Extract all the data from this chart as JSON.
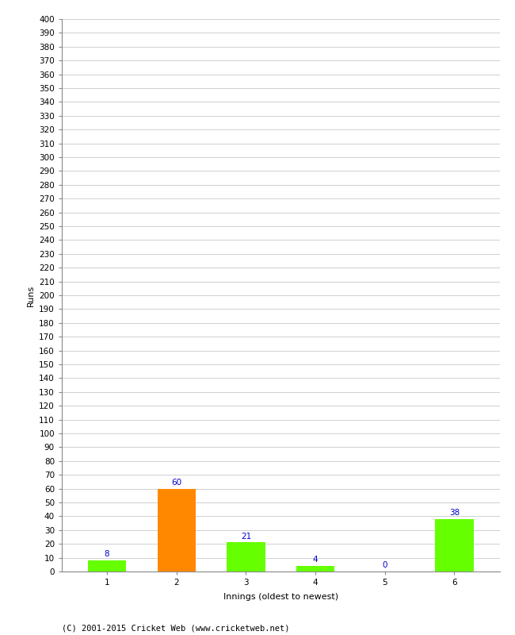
{
  "categories": [
    "1",
    "2",
    "3",
    "4",
    "5",
    "6"
  ],
  "values": [
    8,
    60,
    21,
    4,
    0,
    38
  ],
  "bar_colors": [
    "#66ff00",
    "#ff8800",
    "#66ff00",
    "#66ff00",
    "#66ff00",
    "#66ff00"
  ],
  "ylabel": "Runs",
  "xlabel": "Innings (oldest to newest)",
  "ylim": [
    0,
    400
  ],
  "ytick_step": 10,
  "label_color": "#0000cc",
  "label_fontsize": 7.5,
  "ylabel_fontsize": 8,
  "xlabel_fontsize": 8,
  "tick_fontsize": 7.5,
  "footer": "(C) 2001-2015 Cricket Web (www.cricketweb.net)",
  "footer_fontsize": 7.5,
  "background_color": "#ffffff",
  "grid_color": "#d0d0d0",
  "bar_width": 0.55,
  "spine_color": "#888888"
}
